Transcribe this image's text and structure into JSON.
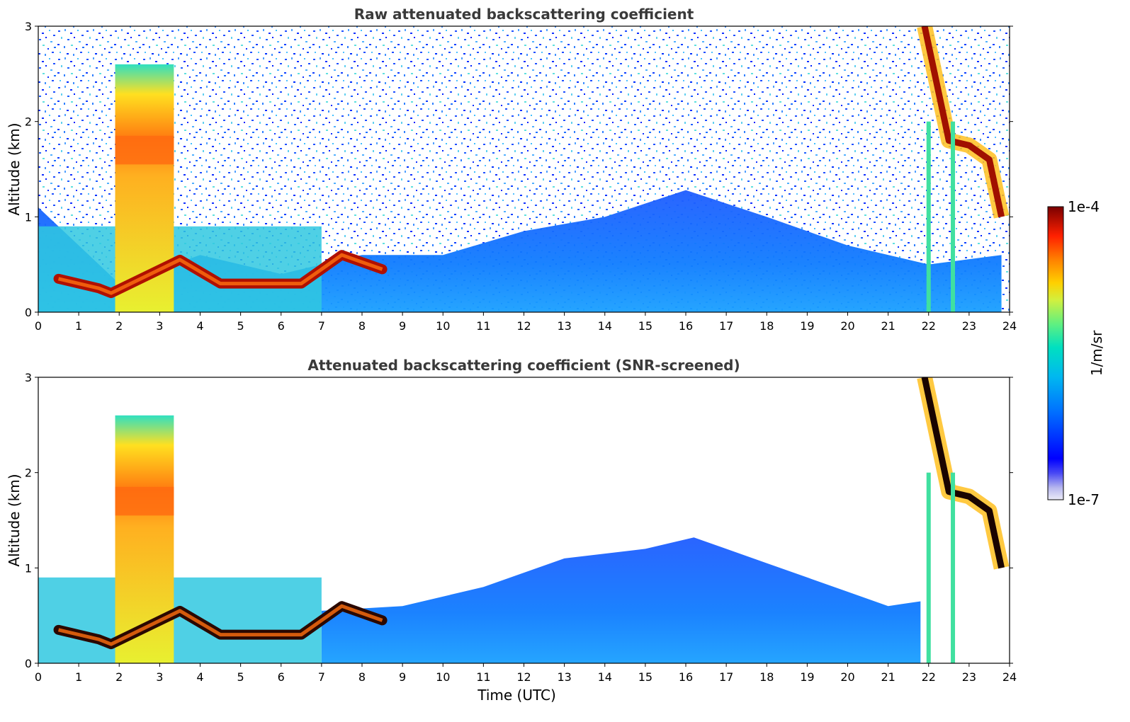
{
  "chart_data": [
    {
      "type": "heatmap",
      "title": "Raw attenuated backscattering coefficient",
      "xlabel": "",
      "ylabel": "Altitude (km)",
      "xlim": [
        0,
        24
      ],
      "ylim": [
        0,
        3
      ],
      "xticks": [
        "0",
        "1",
        "2",
        "3",
        "4",
        "5",
        "6",
        "7",
        "8",
        "9",
        "10",
        "11",
        "12",
        "13",
        "14",
        "15",
        "16",
        "17",
        "18",
        "19",
        "20",
        "21",
        "22",
        "23",
        "24"
      ],
      "yticks": [
        "0",
        "1",
        "2",
        "3"
      ],
      "features": [
        {
          "name": "aerosol layer top (km)",
          "x": [
            0,
            2,
            4,
            6,
            8,
            10,
            12,
            14,
            16,
            18,
            20,
            22,
            23.8
          ],
          "y": [
            1.1,
            0.3,
            0.6,
            0.4,
            0.6,
            0.6,
            0.85,
            1.0,
            1.28,
            1.0,
            0.7,
            0.5,
            0.6
          ]
        },
        {
          "name": "low cloud layer (km)",
          "x": [
            0.5,
            1.0,
            1.5,
            1.8,
            3.5,
            4.5,
            5.5,
            6.5,
            7.5,
            8.5
          ],
          "y": [
            0.35,
            0.3,
            0.25,
            0.2,
            0.55,
            0.3,
            0.3,
            0.3,
            0.6,
            0.45
          ]
        },
        {
          "name": "deep cloud column",
          "x": [
            1.9,
            3.35
          ],
          "top_km": 2.6
        },
        {
          "name": "upper cloud layer (km)",
          "x": [
            21.9,
            22.5,
            23,
            23.5,
            23.8
          ],
          "y": [
            3.0,
            1.8,
            1.75,
            1.6,
            1.0
          ]
        }
      ]
    },
    {
      "type": "heatmap",
      "title": "Attenuated backscattering coefficient (SNR-screened)",
      "xlabel": "Time (UTC)",
      "ylabel": "Altitude (km)",
      "xlim": [
        0,
        24
      ],
      "ylim": [
        0,
        3
      ],
      "xticks": [
        "0",
        "1",
        "2",
        "3",
        "4",
        "5",
        "6",
        "7",
        "8",
        "9",
        "10",
        "11",
        "12",
        "13",
        "14",
        "15",
        "16",
        "17",
        "18",
        "19",
        "20",
        "21",
        "22",
        "23",
        "24"
      ],
      "yticks": [
        "0",
        "1",
        "2",
        "3"
      ],
      "features": [
        {
          "name": "aerosol layer top (km)",
          "x": [
            7,
            9,
            11,
            13,
            15,
            16.2,
            18,
            20,
            21,
            21.8
          ],
          "y": [
            0.55,
            0.6,
            0.8,
            1.1,
            1.2,
            1.32,
            1.05,
            0.75,
            0.6,
            0.65
          ]
        },
        {
          "name": "low cloud layer (km)",
          "x": [
            0.5,
            1.0,
            1.5,
            1.8,
            3.5,
            4.5,
            5.5,
            6.5,
            7.5,
            8.5
          ],
          "y": [
            0.35,
            0.3,
            0.25,
            0.2,
            0.55,
            0.3,
            0.3,
            0.3,
            0.6,
            0.45
          ]
        },
        {
          "name": "deep cloud column",
          "x": [
            1.9,
            3.35
          ],
          "top_km": 2.6
        },
        {
          "name": "upper cloud layer (km)",
          "x": [
            21.9,
            22.5,
            23,
            23.5,
            23.8
          ],
          "y": [
            3.0,
            1.8,
            1.75,
            1.6,
            1.0
          ]
        }
      ]
    }
  ],
  "colorbar": {
    "label": "1/m/sr",
    "max_label": "1e-4",
    "min_label": "1e-7",
    "colors": [
      "#ebebf7",
      "#c8c8ee",
      "#a0a0e6",
      "#5a5af0",
      "#0000ff",
      "#0040ff",
      "#0080ff",
      "#00b0f0",
      "#00d8d0",
      "#40f0a0",
      "#a0f060",
      "#e8e820",
      "#ffc000",
      "#ff8000",
      "#ff3000",
      "#d00000",
      "#800000"
    ]
  }
}
